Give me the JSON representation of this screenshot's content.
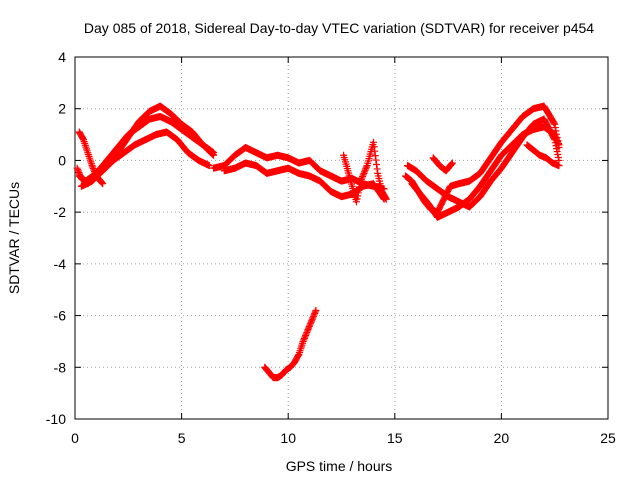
{
  "chart_data": {
    "type": "scatter",
    "title": "Day 085 of 2018, Sidereal Day-to-day VTEC variation (SDTVAR) for receiver p454",
    "xlabel": "GPS time / hours",
    "ylabel": "SDTVAR / TECUs",
    "xlim": [
      0,
      25
    ],
    "ylim": [
      -10,
      4
    ],
    "xticks": [
      0,
      5,
      10,
      15,
      20,
      25
    ],
    "yticks": [
      -10,
      -8,
      -6,
      -4,
      -2,
      0,
      2,
      4
    ],
    "xtick_labels": [
      "0",
      "5",
      "10",
      "15",
      "20",
      "25"
    ],
    "ytick_labels": [
      "-10",
      "-8",
      "-6",
      "-4",
      "-2",
      "0",
      "2",
      "4"
    ],
    "grid": true,
    "marker": "+",
    "color": "#ff0000",
    "series": [
      {
        "name": "track-1",
        "x": [
          0.1,
          0.3,
          0.6,
          1.0,
          1.5,
          2.0,
          2.5,
          3.0,
          3.5,
          4.0,
          4.5,
          5.0,
          5.5,
          6.0,
          6.5
        ],
        "y": [
          -0.3,
          -0.7,
          -0.9,
          -0.6,
          -0.2,
          0.3,
          0.9,
          1.5,
          1.9,
          2.1,
          1.8,
          1.4,
          1.1,
          0.6,
          0.2
        ]
      },
      {
        "name": "track-2",
        "x": [
          0.2,
          0.5,
          1.0,
          1.5,
          2.0,
          2.5,
          3.0,
          3.5,
          4.0,
          4.5,
          5.0,
          5.5,
          6.0,
          6.5
        ],
        "y": [
          -0.6,
          -0.8,
          -0.5,
          0.0,
          0.5,
          1.0,
          1.3,
          1.6,
          1.7,
          1.5,
          1.2,
          0.9,
          0.6,
          0.3
        ]
      },
      {
        "name": "track-3",
        "x": [
          0.3,
          0.8,
          1.3,
          1.8,
          2.3,
          2.8,
          3.3,
          3.8,
          4.3,
          4.8,
          5.3,
          5.8,
          6.3
        ],
        "y": [
          -1.0,
          -0.8,
          -0.4,
          0.0,
          0.3,
          0.6,
          0.8,
          1.0,
          1.1,
          0.8,
          0.3,
          0.0,
          -0.2
        ]
      },
      {
        "name": "track-4",
        "x": [
          0.2,
          0.4,
          0.6,
          0.8,
          1.0,
          1.3
        ],
        "y": [
          1.1,
          0.8,
          0.3,
          -0.2,
          -0.6,
          -0.9
        ]
      },
      {
        "name": "track-5",
        "x": [
          6.5,
          7.0,
          7.5,
          8.0,
          8.5,
          9.0,
          9.5,
          10.0,
          10.5,
          11.0,
          11.5,
          12.0,
          12.5,
          13.0,
          13.5,
          14.0,
          14.5
        ],
        "y": [
          -0.3,
          -0.2,
          0.2,
          0.5,
          0.3,
          0.1,
          0.2,
          0.1,
          -0.1,
          0.0,
          -0.4,
          -0.6,
          -0.8,
          -0.7,
          -0.9,
          -1.0,
          -1.1
        ]
      },
      {
        "name": "track-6",
        "x": [
          7.0,
          7.5,
          8.0,
          8.5,
          9.0,
          9.5,
          10.0,
          10.5,
          11.0,
          11.5,
          12.0,
          12.5,
          13.0,
          13.5,
          14.0,
          14.5
        ],
        "y": [
          -0.4,
          -0.3,
          -0.1,
          -0.2,
          -0.5,
          -0.4,
          -0.3,
          -0.5,
          -0.6,
          -0.8,
          -1.2,
          -1.4,
          -1.3,
          -1.0,
          -0.9,
          -1.5
        ]
      },
      {
        "name": "track-7",
        "x": [
          12.6,
          12.8,
          13.0,
          13.2,
          13.4,
          13.7,
          14.0,
          14.2,
          14.4,
          14.6
        ],
        "y": [
          0.2,
          -0.4,
          -1.0,
          -1.6,
          -0.8,
          -0.2,
          0.7,
          -0.5,
          -1.2,
          -1.5
        ]
      },
      {
        "name": "track-8",
        "x": [
          15.5,
          15.8,
          16.1,
          16.4,
          16.7,
          17.0,
          17.3,
          17.6,
          18.0,
          18.5,
          19.0,
          19.5,
          20.0,
          20.5,
          21.0,
          21.5,
          22.0,
          22.5,
          22.7
        ],
        "y": [
          -0.6,
          -0.8,
          -1.2,
          -1.6,
          -1.9,
          -2.0,
          -1.5,
          -1.0,
          -0.9,
          -0.8,
          -0.5,
          0.1,
          0.7,
          1.2,
          1.7,
          2.0,
          2.1,
          1.4,
          0.5
        ]
      },
      {
        "name": "track-9",
        "x": [
          15.6,
          16.0,
          16.5,
          17.0,
          17.5,
          18.0,
          18.5,
          19.0,
          19.5,
          20.0,
          20.5,
          21.0,
          21.5,
          22.0,
          22.5,
          22.7
        ],
        "y": [
          -0.2,
          -0.4,
          -0.8,
          -1.1,
          -1.4,
          -1.6,
          -1.8,
          -1.4,
          -0.8,
          -0.3,
          0.3,
          0.9,
          1.4,
          1.6,
          0.8,
          0.0
        ]
      },
      {
        "name": "track-10",
        "x": [
          15.8,
          16.2,
          16.6,
          17.0,
          17.5,
          18.0,
          18.5,
          19.0,
          19.5,
          20.0,
          20.5,
          21.0,
          21.5,
          22.0,
          22.5,
          22.7
        ],
        "y": [
          -0.9,
          -1.3,
          -1.7,
          -2.2,
          -2.0,
          -1.8,
          -1.5,
          -1.0,
          -0.4,
          0.2,
          0.6,
          1.0,
          1.2,
          1.3,
          1.0,
          0.6
        ]
      },
      {
        "name": "track-11",
        "x": [
          21.2,
          21.5,
          21.8,
          22.1,
          22.4,
          22.7
        ],
        "y": [
          0.6,
          0.4,
          0.2,
          0.1,
          -0.1,
          -0.2
        ]
      },
      {
        "name": "track-12",
        "x": [
          16.8,
          17.1,
          17.4,
          17.7
        ],
        "y": [
          0.1,
          -0.2,
          -0.4,
          -0.1
        ]
      },
      {
        "name": "track-13",
        "x": [
          8.9,
          9.1,
          9.3,
          9.5,
          9.7,
          9.9,
          10.1,
          10.3,
          10.5,
          10.7,
          10.9,
          11.1,
          11.3
        ],
        "y": [
          -8.0,
          -8.2,
          -8.4,
          -8.4,
          -8.3,
          -8.1,
          -8.0,
          -7.8,
          -7.5,
          -7.0,
          -6.6,
          -6.2,
          -5.8
        ]
      }
    ]
  }
}
